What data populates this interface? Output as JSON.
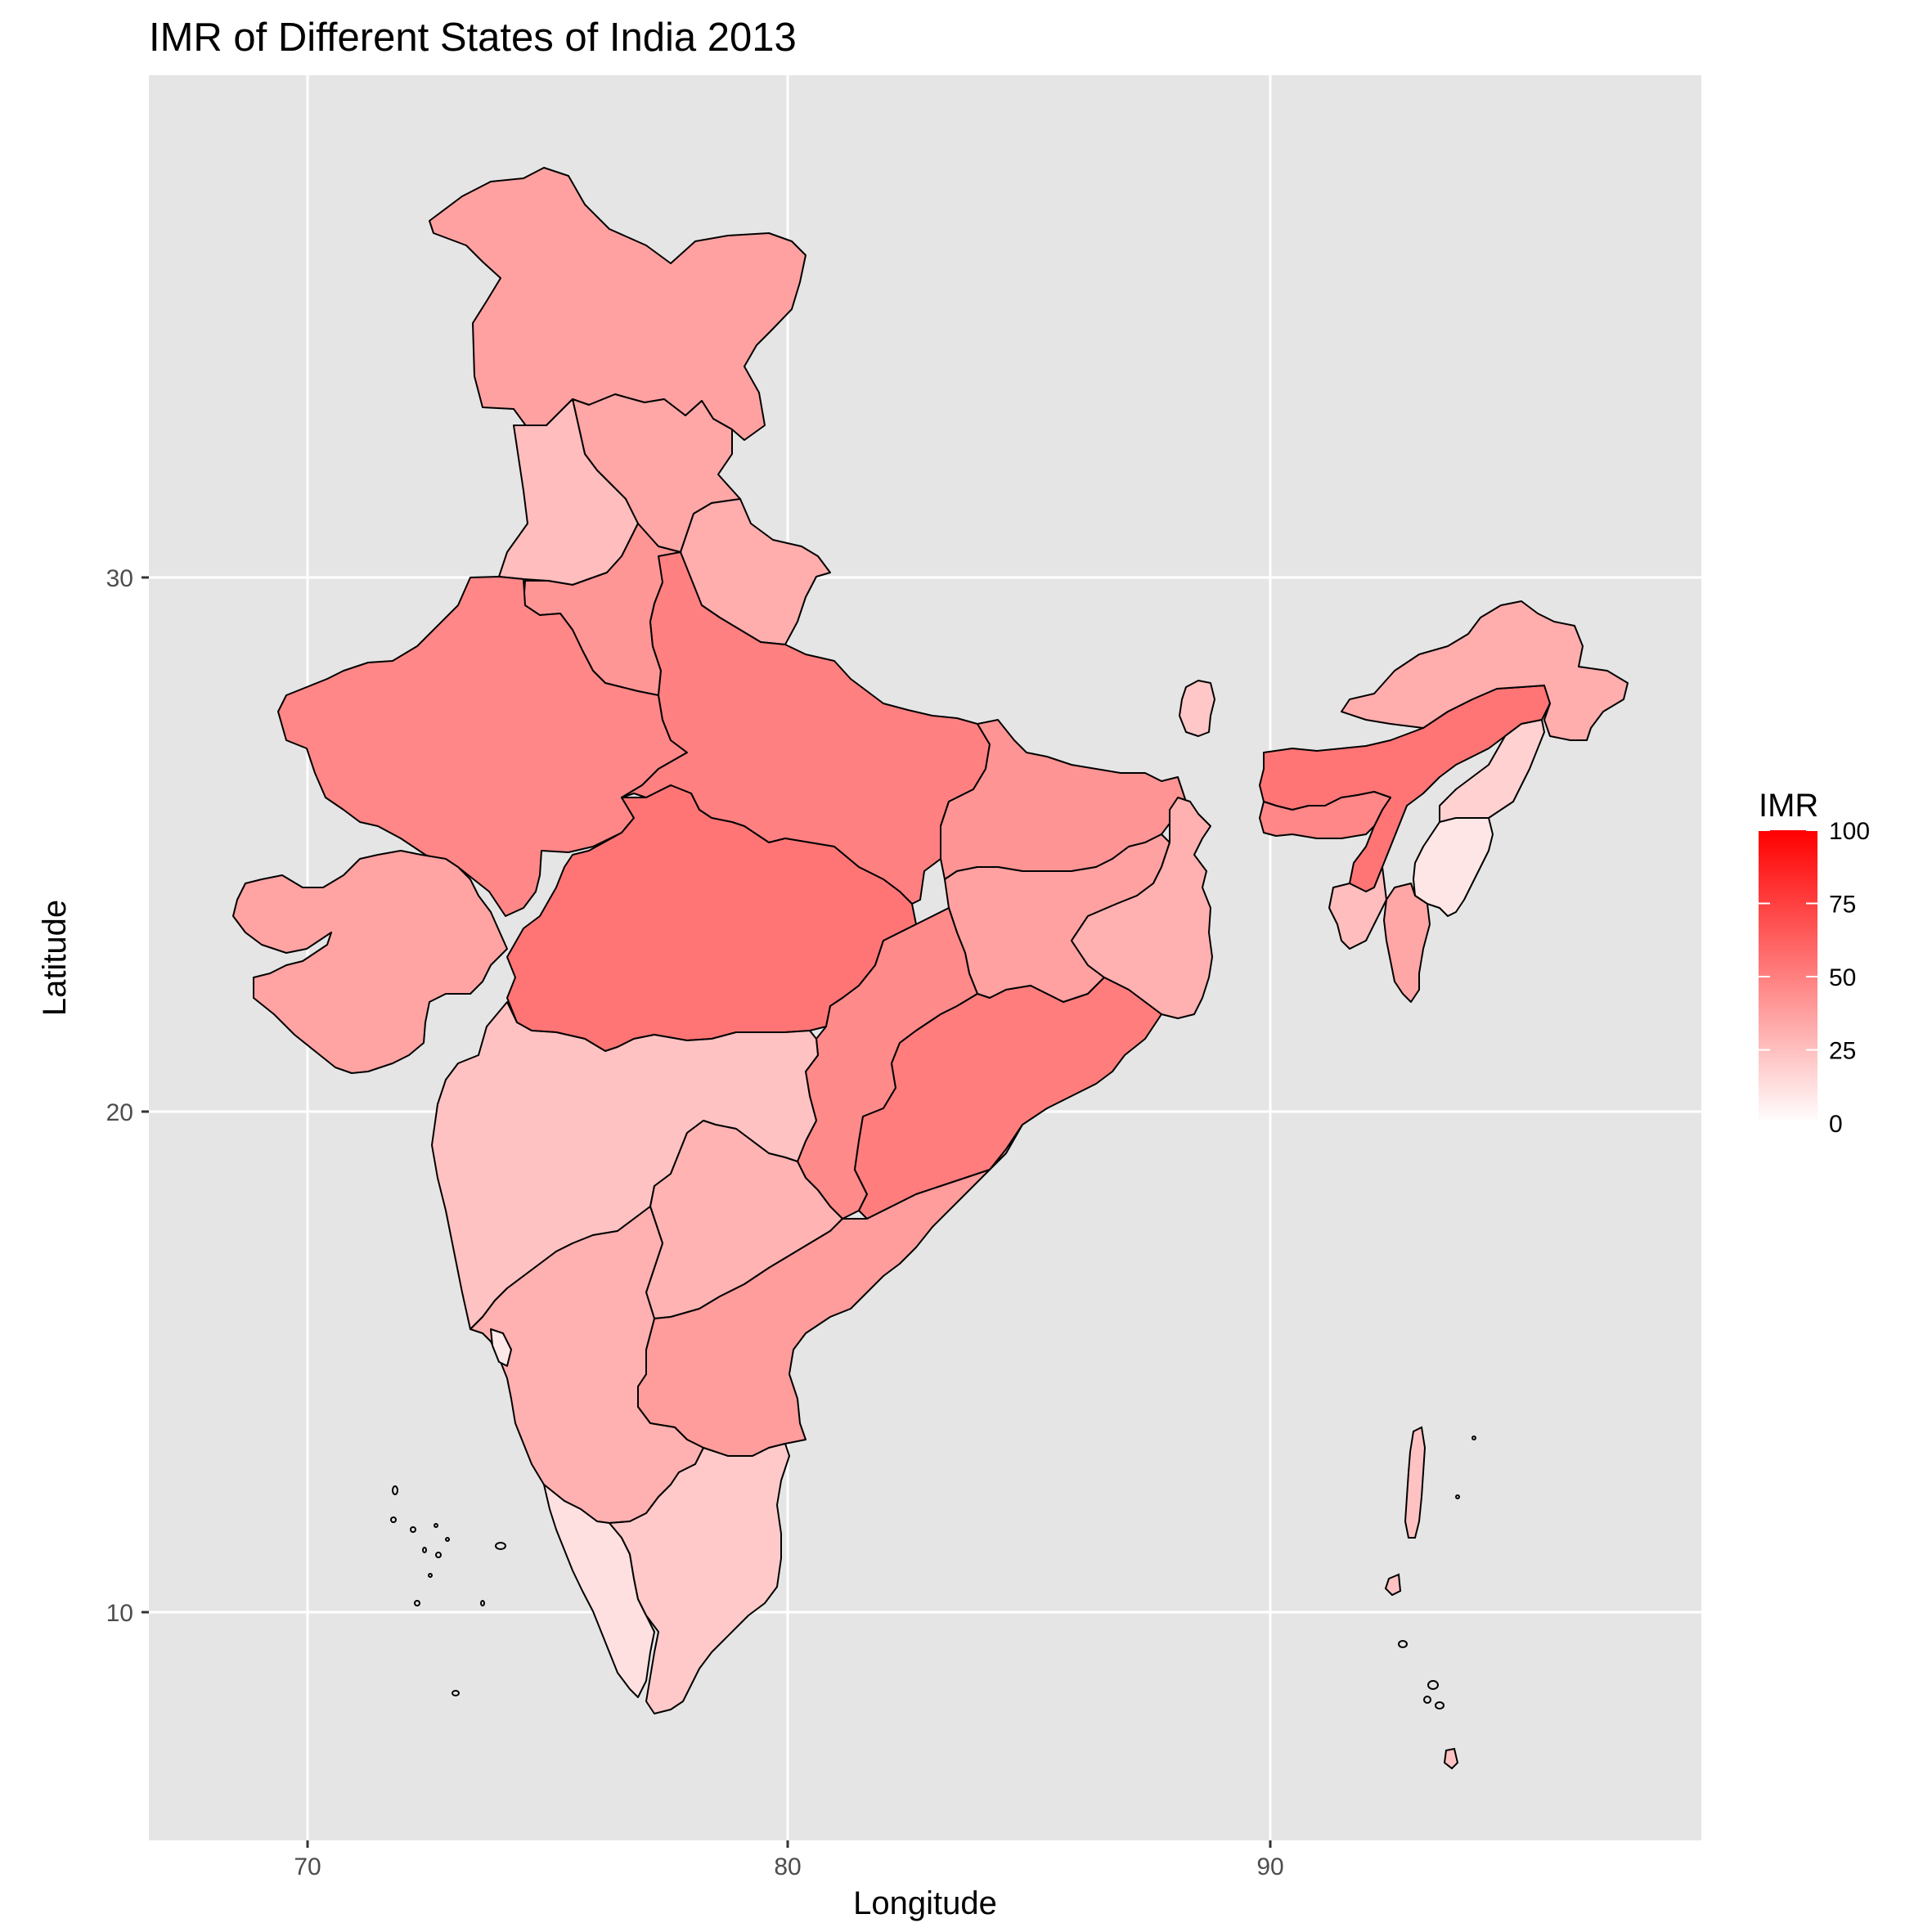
{
  "title": "IMR of Different States of India 2013",
  "chart_data": {
    "type": "choropleth",
    "title": "IMR of Different States of India 2013",
    "xlabel": "Longitude",
    "ylabel": "Latitude",
    "xlim": [
      66.7,
      99.0
    ],
    "ylim": [
      6.0,
      39.4
    ],
    "x_ticks": [
      70,
      80,
      90
    ],
    "y_ticks": [
      10,
      20,
      30
    ],
    "grid": true,
    "background": "#e5e5e5",
    "legend": {
      "title": "IMR",
      "position": "right",
      "range": [
        0,
        100
      ],
      "breaks": [
        0,
        25,
        50,
        75,
        100
      ],
      "low_color": "#ffffff",
      "high_color": "#ff0000"
    },
    "regions": [
      {
        "id": "northern-kashmir",
        "imr": 37
      },
      {
        "id": "himachal",
        "imr": 35
      },
      {
        "id": "punjab",
        "imr": 26
      },
      {
        "id": "uttarakhand",
        "imr": 32
      },
      {
        "id": "haryana",
        "imr": 41
      },
      {
        "id": "rajasthan",
        "imr": 47
      },
      {
        "id": "uttar-pradesh",
        "imr": 50
      },
      {
        "id": "gujarat",
        "imr": 36
      },
      {
        "id": "madhya-pradesh",
        "imr": 54
      },
      {
        "id": "bihar",
        "imr": 42
      },
      {
        "id": "jharkhand",
        "imr": 37
      },
      {
        "id": "west-bengal",
        "imr": 31
      },
      {
        "id": "chhattisgarh",
        "imr": 46
      },
      {
        "id": "odisha",
        "imr": 51
      },
      {
        "id": "maharashtra",
        "imr": 24
      },
      {
        "id": "telangana",
        "imr": 30
      },
      {
        "id": "andhra-pradesh",
        "imr": 39
      },
      {
        "id": "karnataka",
        "imr": 31
      },
      {
        "id": "goa",
        "imr": 9
      },
      {
        "id": "kerala",
        "imr": 12
      },
      {
        "id": "tamil-nadu",
        "imr": 21
      },
      {
        "id": "sikkim",
        "imr": 22
      },
      {
        "id": "assam",
        "imr": 54
      },
      {
        "id": "arunachal",
        "imr": 32
      },
      {
        "id": "nagaland",
        "imr": 18
      },
      {
        "id": "manipur",
        "imr": 10
      },
      {
        "id": "mizoram",
        "imr": 35
      },
      {
        "id": "tripura",
        "imr": 26
      },
      {
        "id": "meghalaya",
        "imr": 47
      },
      {
        "id": "andaman",
        "imr": 24
      }
    ]
  }
}
